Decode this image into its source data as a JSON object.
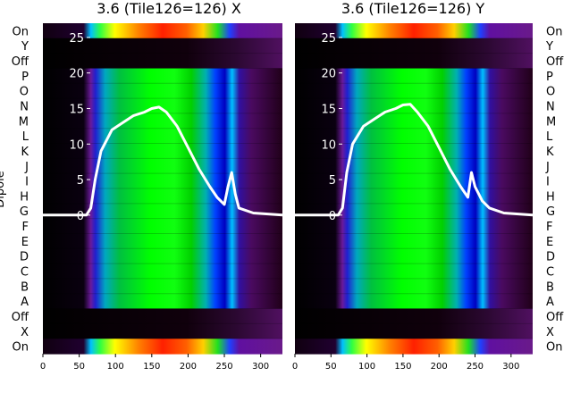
{
  "figure": {
    "ylabel": "Dipole",
    "row_labels": [
      "On",
      "Y",
      "Off",
      "P",
      "O",
      "N",
      "M",
      "L",
      "K",
      "J",
      "I",
      "H",
      "G",
      "F",
      "E",
      "D",
      "C",
      "B",
      "A",
      "Off",
      "X",
      "On"
    ]
  },
  "chart_data": [
    {
      "type": "heatmap",
      "title": "3.6 (Tile126=126) X",
      "xlabel": "",
      "ylabel": "Dipole",
      "x_ticks": [
        0,
        50,
        100,
        150,
        200,
        250,
        300
      ],
      "xlim": [
        0,
        330
      ],
      "overlay_y_ticks": [
        0,
        5,
        10,
        15,
        20,
        25
      ],
      "overlay_ylim": [
        -19.5,
        27
      ],
      "rows": [
        "On",
        "Y",
        "Off",
        "P",
        "O",
        "N",
        "M",
        "L",
        "K",
        "J",
        "I",
        "H",
        "G",
        "F",
        "E",
        "D",
        "C",
        "B",
        "A",
        "Off",
        "X",
        "On"
      ],
      "overlay_line": {
        "color": "#ffffff",
        "x": [
          0,
          60,
          66,
          72,
          80,
          95,
          110,
          125,
          140,
          150,
          160,
          170,
          185,
          200,
          215,
          230,
          240,
          250,
          255,
          260,
          265,
          270,
          290,
          330
        ],
        "y": [
          0,
          0,
          1,
          5,
          9,
          12,
          13,
          14,
          14.5,
          15,
          15.2,
          14.5,
          12.5,
          9.5,
          6.5,
          4,
          2.5,
          1.5,
          4,
          6,
          3,
          1,
          0.3,
          0
        ]
      }
    },
    {
      "type": "heatmap",
      "title": "3.6 (Tile126=126) Y",
      "xlabel": "",
      "ylabel": "",
      "x_ticks": [
        0,
        50,
        100,
        150,
        200,
        250,
        300
      ],
      "xlim": [
        0,
        330
      ],
      "overlay_y_ticks": [
        0,
        5,
        10,
        15,
        20,
        25
      ],
      "overlay_ylim": [
        -19.5,
        27
      ],
      "rows": [
        "On",
        "Y",
        "Off",
        "P",
        "O",
        "N",
        "M",
        "L",
        "K",
        "J",
        "I",
        "H",
        "G",
        "F",
        "E",
        "D",
        "C",
        "B",
        "A",
        "Off",
        "X",
        "On"
      ],
      "overlay_line": {
        "color": "#ffffff",
        "x": [
          0,
          60,
          66,
          72,
          80,
          95,
          110,
          125,
          140,
          150,
          160,
          170,
          185,
          200,
          215,
          230,
          240,
          245,
          250,
          260,
          270,
          290,
          330
        ],
        "y": [
          0,
          0,
          1,
          6,
          10,
          12.5,
          13.5,
          14.5,
          15,
          15.5,
          15.6,
          14.5,
          12.5,
          9.5,
          6.5,
          4,
          2.5,
          6,
          4,
          2,
          1,
          0.3,
          0
        ]
      }
    }
  ]
}
